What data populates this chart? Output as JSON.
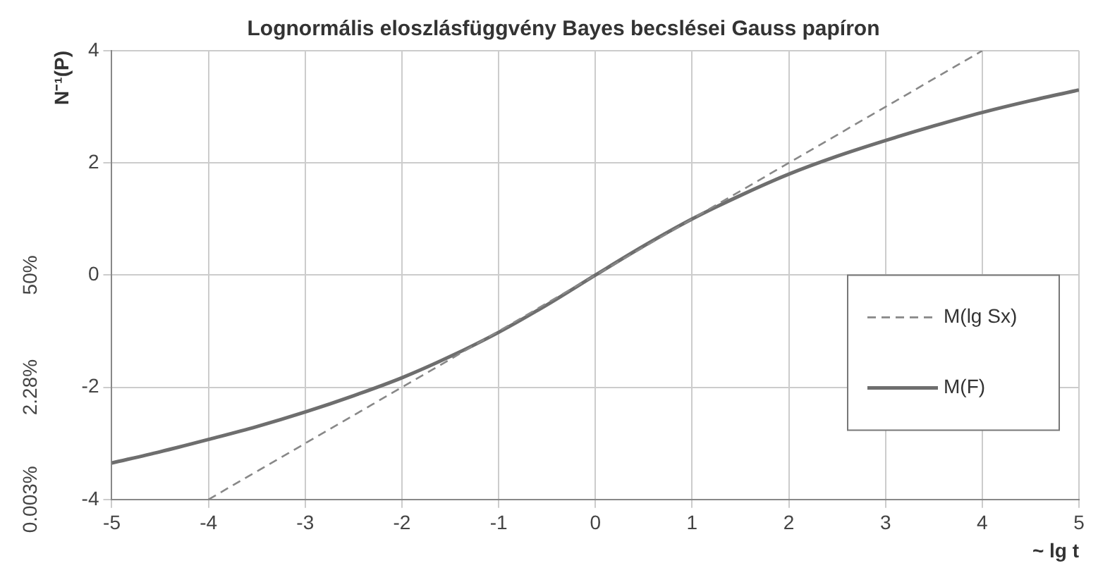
{
  "chart_data": {
    "type": "line",
    "title": "Lognormális eloszlásfüggvény Bayes becslései Gauss papíron",
    "xlabel": "~ lg t",
    "ylabel": "N⁻¹(P)",
    "xlim": [
      -5,
      5
    ],
    "xticks": [
      -5,
      -4,
      -3,
      -2,
      -1,
      0,
      1,
      2,
      3,
      4,
      5
    ],
    "ylim": [
      -4,
      4
    ],
    "yticks": [
      -4,
      -2,
      0,
      2,
      4
    ],
    "annotations": [
      "0.003%",
      "2.28%",
      "50%"
    ],
    "grid": true,
    "legend": "right",
    "marker": "none",
    "series": [
      {
        "name": "M(lg Sx)",
        "color": "#888888",
        "line_style": "dashed",
        "x": [
          -4,
          4
        ],
        "values": [
          -4,
          4
        ]
      },
      {
        "name": "M(F)",
        "color": "#6e6e6e",
        "line_style": "solid",
        "x": [
          -5,
          -4.5,
          -4,
          -3.5,
          -3,
          -2.5,
          -2,
          -1.5,
          -1,
          -0.5,
          0,
          0.5,
          1,
          1.5,
          2,
          2.5,
          3,
          3.5,
          4,
          4.5,
          5
        ],
        "values": [
          -3.35,
          -3.15,
          -2.93,
          -2.7,
          -2.44,
          -2.15,
          -1.83,
          -1.45,
          -1.02,
          -0.53,
          0,
          0.52,
          1.0,
          1.42,
          1.8,
          2.12,
          2.4,
          2.66,
          2.9,
          3.11,
          3.3
        ]
      }
    ]
  }
}
